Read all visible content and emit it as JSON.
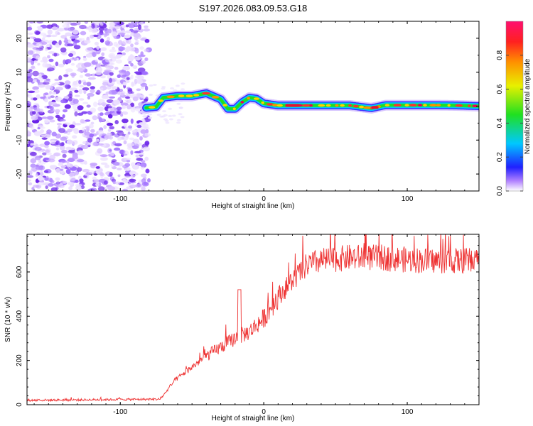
{
  "title": "S197.2026.083.09.53.G18",
  "chart_data": [
    {
      "type": "heatmap",
      "xlabel": "Height of straight line (km)",
      "ylabel": "Frequency (Hz)",
      "xlim": [
        -165,
        150
      ],
      "ylim": [
        -25,
        25
      ],
      "x_ticks": [
        -100,
        0,
        100
      ],
      "y_ticks": [
        -20,
        -10,
        0,
        10,
        20
      ],
      "noise_region_x": [
        -165,
        -80
      ],
      "ridge": {
        "x": [
          -82,
          -75,
          -70,
          -60,
          -50,
          -40,
          -30,
          -25,
          -20,
          -15,
          -10,
          -5,
          0,
          10,
          20,
          40,
          60,
          75,
          85,
          100,
          120,
          135,
          150
        ],
        "freq": [
          -0.5,
          -0.2,
          2.5,
          3.0,
          3.0,
          3.8,
          2.0,
          -0.8,
          -0.8,
          1.2,
          2.5,
          2.2,
          0.8,
          0.2,
          0.2,
          0.2,
          0.2,
          -0.6,
          0.3,
          0.3,
          0.3,
          0.2,
          0.0
        ]
      },
      "colorbar": {
        "label": "Normalized spectral amplitude",
        "range": [
          0,
          1
        ],
        "ticks": [
          0.0,
          0.2,
          0.4,
          0.6,
          0.8
        ]
      }
    },
    {
      "type": "line",
      "xlabel": "Height of straight line (km)",
      "ylabel": "SNR (10 * v/v)",
      "xlim": [
        -165,
        150
      ],
      "ylim": [
        0,
        770
      ],
      "x_ticks": [
        -100,
        0,
        100
      ],
      "y_ticks": [
        0,
        200,
        400,
        600
      ],
      "color": "#ee3333",
      "trend": {
        "x": [
          -165,
          -72,
          -62,
          -50,
          -40,
          -30,
          -20,
          -10,
          0,
          10,
          20,
          30,
          40,
          60,
          80,
          100,
          120,
          135,
          150
        ],
        "y": [
          20,
          25,
          110,
          170,
          220,
          260,
          300,
          330,
          390,
          490,
          560,
          630,
          650,
          665,
          665,
          655,
          650,
          650,
          650
        ]
      }
    }
  ]
}
